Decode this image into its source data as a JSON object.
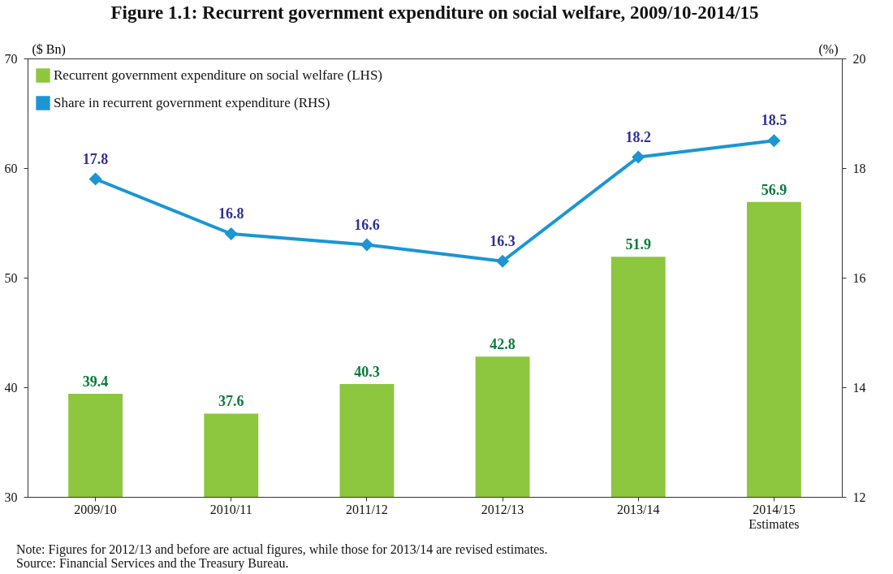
{
  "chart_data": {
    "type": "bar",
    "title": "Figure 1.1: Recurrent government expenditure on social welfare, 2009/10-2014/15",
    "ylabel": "($ Bn)",
    "y2label": "(%)",
    "categories": [
      "2009/10",
      "2010/11",
      "2011/12",
      "2012/13",
      "2013/14",
      "2014/15\nEstimates"
    ],
    "series": [
      {
        "name": "Recurrent government expenditure on social welfare (LHS)",
        "color": "#8dc63f",
        "values": [
          39.4,
          37.6,
          40.3,
          42.8,
          51.9,
          56.9
        ]
      },
      {
        "name": "Share in recurrent government expenditure (RHS)",
        "type": "line",
        "axis": "y2",
        "color": "#1b96d3",
        "values": [
          17.8,
          16.8,
          16.6,
          16.3,
          18.2,
          18.5
        ]
      }
    ],
    "ylim": [
      30,
      70
    ],
    "yticks": [
      30,
      40,
      50,
      60,
      70
    ],
    "y2lim": [
      12,
      20
    ],
    "y2ticks": [
      12,
      14,
      16,
      18,
      20
    ],
    "data_labels": true,
    "legend": "top left",
    "grid": false,
    "marker": "diamond",
    "line_style": "solid",
    "annotations": [
      "Note: Figures for 2012/13 and before are actual figures, while those for 2013/14 are revised estimates.",
      "Source: Financial Services and the Treasury Bureau."
    ]
  }
}
